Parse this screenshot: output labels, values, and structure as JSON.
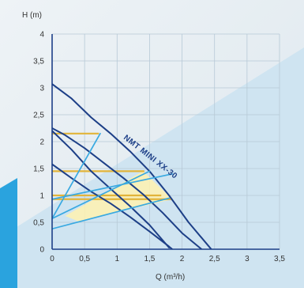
{
  "chart_data": {
    "type": "line",
    "title": "",
    "model_label": "NMT MINI XX-30",
    "xlabel": "Q (m³/h)",
    "ylabel": "H (m)",
    "xlim": [
      0,
      3.5
    ],
    "ylim": [
      0,
      4
    ],
    "x_ticks": [
      "0",
      "0,5",
      "1",
      "1,5",
      "2",
      "2,5",
      "3",
      "3,5"
    ],
    "y_ticks": [
      "0",
      "0,5",
      "1",
      "1,5",
      "2",
      "2,5",
      "3",
      "3,5",
      "4"
    ],
    "grid": true,
    "colors": {
      "pump_curve": "#1d3f87",
      "system_curve": "#39a9e1",
      "operating_level": "#e2b43a",
      "operating_area": "#fff2b0",
      "background_light": "#e9eff3",
      "background_blue": "#cfe4f1",
      "accent_strip": "#2aa3de"
    },
    "series": [
      {
        "role": "pump_curve",
        "x": [
          0,
          0.3,
          0.6,
          0.9,
          1.2,
          1.5,
          1.8,
          2.1,
          2.4,
          2.45
        ],
        "y": [
          3.07,
          2.8,
          2.45,
          2.15,
          1.82,
          1.45,
          1.0,
          0.5,
          0.07,
          0.0
        ]
      },
      {
        "role": "pump_curve",
        "x": [
          0,
          0.2,
          0.5,
          0.8,
          1.1,
          1.4,
          1.7,
          2.0,
          2.3
        ],
        "y": [
          2.25,
          2.12,
          1.88,
          1.6,
          1.32,
          1.02,
          0.68,
          0.3,
          0.0
        ]
      },
      {
        "role": "pump_curve",
        "x": [
          0,
          0.3,
          0.6,
          0.9,
          1.2,
          1.5,
          1.8
        ],
        "y": [
          2.2,
          1.85,
          1.45,
          1.12,
          0.8,
          0.45,
          0.03
        ]
      },
      {
        "role": "pump_curve",
        "x": [
          0,
          0.3,
          0.6,
          0.9,
          1.2,
          1.5,
          1.8,
          1.85
        ],
        "y": [
          1.58,
          1.32,
          1.07,
          0.85,
          0.6,
          0.33,
          0.05,
          0.0
        ]
      },
      {
        "role": "system_curve",
        "x": [
          0,
          0.74
        ],
        "y": [
          0.57,
          2.15
        ]
      },
      {
        "role": "system_curve",
        "x": [
          0,
          1.5
        ],
        "y": [
          0.57,
          1.45
        ]
      },
      {
        "role": "system_curve",
        "x": [
          0,
          1.8
        ],
        "y": [
          0.38,
          0.95
        ]
      },
      {
        "role": "system_curve",
        "x": [
          0,
          1.85
        ],
        "y": [
          0.93,
          1.4
        ]
      }
    ],
    "operating_levels": [
      {
        "y": 2.15,
        "x": [
          0,
          0.72
        ]
      },
      {
        "y": 1.45,
        "x": [
          0,
          1.42
        ]
      },
      {
        "y": 1.0,
        "x": [
          0,
          1.68
        ]
      },
      {
        "y": 0.93,
        "x": [
          0,
          1.85
        ]
      }
    ],
    "operating_area": {
      "x": [
        0.2,
        1.4,
        1.85,
        0.4
      ],
      "y": [
        0.62,
        1.45,
        0.93,
        0.52
      ]
    }
  }
}
